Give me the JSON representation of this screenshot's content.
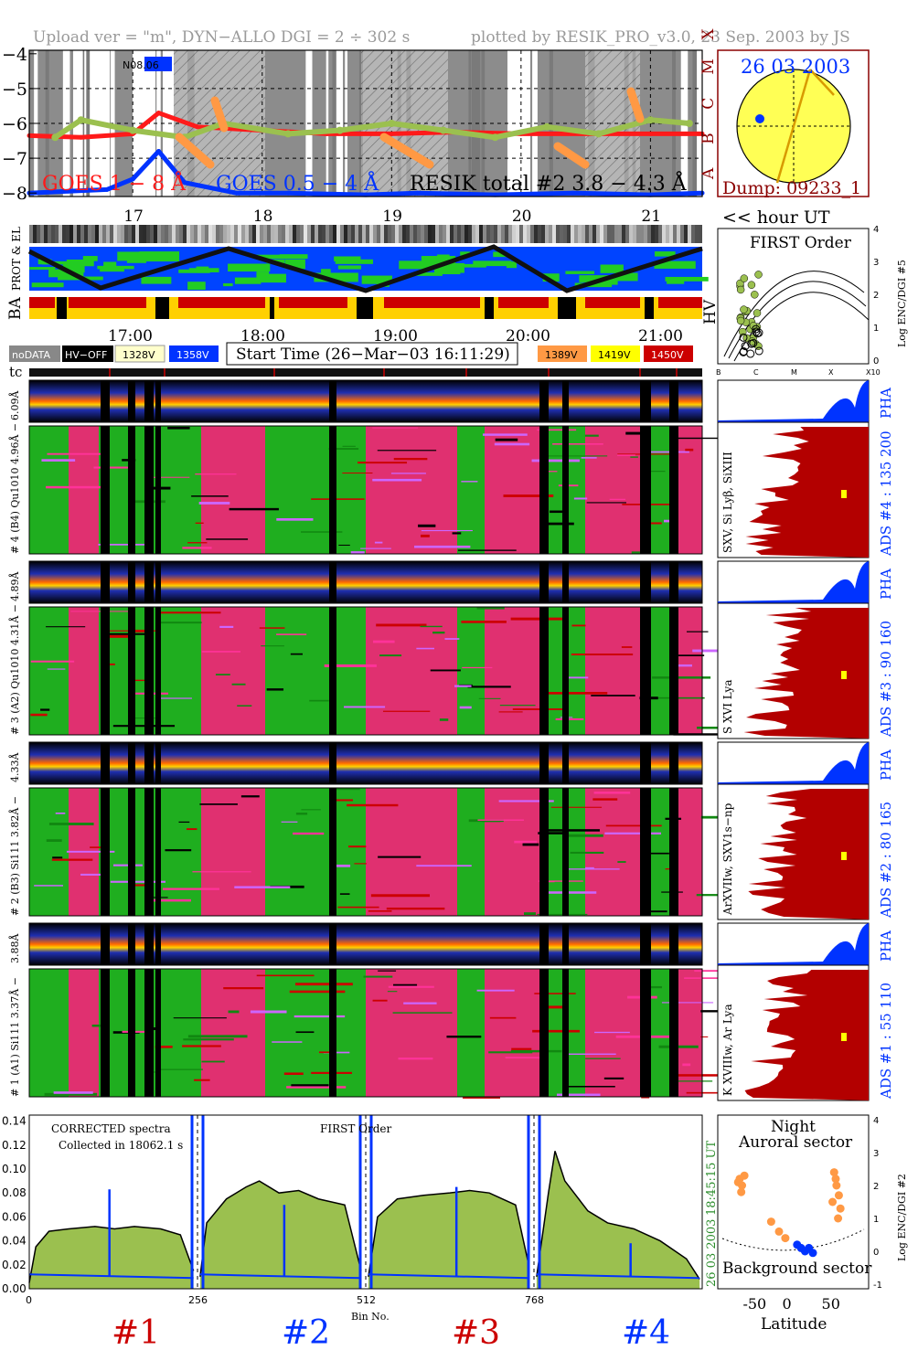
{
  "header": {
    "left": "Upload ver = \"m\", DYN−ALLO DGI =   2 ÷ 302 s",
    "right": "plotted by RESIK_PRO_v3.0, 23 Sep. 2003 by JS"
  },
  "goes_panel": {
    "y_ticks": [
      "−4",
      "−5",
      "−6",
      "−7",
      "−8"
    ],
    "class_letters": [
      "X",
      "M",
      "C",
      "B",
      "A"
    ],
    "label_long": "GOES 1 − 8 Å",
    "label_short": "GOES 0.5 − 4 Å",
    "label_resik": "RESIK total #2  3.8 − 4.3 Å",
    "region_tag": "N08.06",
    "hour_ticks": [
      "17",
      "18",
      "19",
      "20",
      "21"
    ]
  },
  "sun_panel": {
    "date": "26 03 2003",
    "dump": "Dump: 09233_1"
  },
  "axis_labels": {
    "hour_ut": "<< hour UT",
    "prot_el": "PROT & EL",
    "ba": "BA",
    "hv": "HV",
    "tc": "tc",
    "bin_no": "Bin No.",
    "latitude": "Latitude",
    "log_enc_5": "Log ENC/DGI #5",
    "log_enc_2": "Log ENC/DGI #2"
  },
  "time_ticks": [
    "17:00",
    "18:00",
    "19:00",
    "20:00",
    "21:00"
  ],
  "legend": {
    "nodata": "noDATA",
    "hvoff": "HV−OFF",
    "v1": "1328V",
    "v2": "1358V",
    "start_time": "Start Time (26−Mar−03 16:11:29)",
    "v3": "1389V",
    "v4": "1419V",
    "v5": "1450V"
  },
  "first_order": {
    "title": "FIRST Order",
    "x_ticks": [
      "B",
      "C",
      "M",
      "X",
      "X10"
    ],
    "y_ticks": [
      "0",
      "1",
      "2",
      "3",
      "4"
    ]
  },
  "channels": [
    {
      "pha_left": "6.09Å",
      "band_label": "# 4 (B4)  Qu1010  4.96Å −",
      "lines": "SXV, Si Lyβ, SiXIII",
      "pha": "PHA",
      "ads": "ADS #4 :   135 200"
    },
    {
      "pha_left": "4.89Å",
      "band_label": "# 3 (A2)  Qu1010  4.31Å −",
      "lines": "S XVI Lya",
      "pha": "PHA",
      "ads": "ADS #3 :   90 160"
    },
    {
      "pha_left": "4.33Å",
      "band_label": "# 2 (B3)  Si111  3.82Å −",
      "lines": "ArXVIIw, SXV1s−np",
      "pha": "PHA",
      "ads": "ADS #2 :   80 165"
    },
    {
      "pha_left": "3.88Å",
      "band_label": "# 1 (A1)  Si111  3.37Å −",
      "lines": "K XVIIIw, Ar Lya",
      "pha": "PHA",
      "ads": "ADS #1 :   55 110"
    }
  ],
  "spectra": {
    "label1": "CORRECTED spectra",
    "label2": "Collected in 18062.1 s",
    "label3": "FIRST Order",
    "time_right": "18:45:15 UT",
    "date_right": "26 03 2003",
    "colors": {
      "fill": "#9bc04f",
      "line": "#000000",
      "background": "#0033ff"
    }
  },
  "chart_data": [
    {
      "type": "line",
      "title": "",
      "xlabel": "Bin No.",
      "ylabel": "",
      "x_ticks": [
        0,
        256,
        512,
        768
      ],
      "y_ticks": [
        0.0,
        0.02,
        0.04,
        0.06,
        0.08,
        0.1,
        0.12,
        0.14
      ],
      "y_tick_labels": [
        "0.00",
        "0.02",
        "0.04",
        "0.06",
        "0.08",
        "0.10",
        "0.12",
        "0.14"
      ],
      "xlim": [
        0,
        1024
      ],
      "ylim": [
        0,
        0.145
      ],
      "segments": [
        {
          "name": "#1",
          "color": "#cc0000",
          "x": [
            0,
            10,
            30,
            60,
            100,
            130,
            160,
            200,
            230,
            250
          ],
          "y": [
            0.005,
            0.035,
            0.048,
            0.05,
            0.052,
            0.05,
            0.052,
            0.05,
            0.045,
            0.015
          ]
        },
        {
          "name": "#2",
          "color": "#0033ff",
          "x": [
            260,
            270,
            300,
            330,
            350,
            380,
            410,
            440,
            480,
            505
          ],
          "y": [
            0.01,
            0.055,
            0.075,
            0.085,
            0.09,
            0.08,
            0.082,
            0.075,
            0.07,
            0.015
          ]
        },
        {
          "name": "#3",
          "color": "#cc0000",
          "x": [
            516,
            530,
            560,
            600,
            640,
            670,
            700,
            740,
            760
          ],
          "y": [
            0.01,
            0.06,
            0.075,
            0.078,
            0.08,
            0.082,
            0.08,
            0.07,
            0.02
          ]
        },
        {
          "name": "#4",
          "color": "#0033ff",
          "x": [
            772,
            790,
            800,
            815,
            850,
            880,
            920,
            960,
            1000,
            1020
          ],
          "y": [
            0.01,
            0.08,
            0.115,
            0.09,
            0.065,
            0.055,
            0.05,
            0.04,
            0.025,
            0.008
          ]
        }
      ],
      "background_level": 0.012,
      "spikes": [
        {
          "x": 122,
          "y": 0.083
        },
        {
          "x": 388,
          "y": 0.07
        },
        {
          "x": 650,
          "y": 0.085
        },
        {
          "x": 915,
          "y": 0.038
        }
      ]
    },
    {
      "type": "line",
      "title": "",
      "y_ticks": [
        -8,
        -7,
        -6,
        -5,
        -4
      ],
      "ylim": [
        -8.1,
        -3.9
      ],
      "xlim": [
        16.2,
        21.4
      ],
      "series": [
        {
          "name": "GOES 1 − 8 Å",
          "color": "#ff1a1a",
          "x": [
            16.2,
            16.6,
            17.0,
            17.2,
            17.5,
            18.0,
            18.5,
            19.0,
            19.5,
            20.0,
            20.5,
            21.0,
            21.4
          ],
          "y": [
            -6.35,
            -6.4,
            -6.3,
            -5.7,
            -6.1,
            -6.2,
            -6.3,
            -6.3,
            -6.25,
            -6.3,
            -6.3,
            -6.3,
            -6.3
          ]
        },
        {
          "name": "GOES 0.5 − 4 Å",
          "color": "#0033ff",
          "x": [
            16.2,
            16.5,
            16.8,
            17.0,
            17.2,
            17.4,
            17.8,
            18.2,
            18.8,
            19.2,
            19.8,
            20.4,
            21.0,
            21.4
          ],
          "y": [
            -8.0,
            -7.95,
            -7.9,
            -7.6,
            -6.8,
            -7.7,
            -8.0,
            -8.0,
            -8.05,
            -8.0,
            -8.05,
            -8.0,
            -8.05,
            -8.0
          ]
        },
        {
          "name": "RESIK total #2  3.8 − 4.3 Å",
          "color": "#9bc04f",
          "x": [
            16.4,
            16.6,
            17.0,
            17.4,
            17.7,
            18.2,
            18.6,
            19.0,
            19.4,
            19.8,
            20.2,
            20.6,
            21.0,
            21.3
          ],
          "y": [
            -6.4,
            -5.9,
            -6.2,
            -6.4,
            -6.0,
            -6.3,
            -6.2,
            -6.0,
            -6.2,
            -6.4,
            -6.1,
            -6.3,
            -5.9,
            -6.0
          ]
        }
      ]
    },
    {
      "type": "scatter",
      "title": "",
      "xlabel": "Latitude",
      "ylabel": "Log ENC/DGI #2",
      "x_ticks": [
        -50,
        0,
        50
      ],
      "y_ticks": [
        -1,
        0,
        1,
        2,
        3,
        4
      ],
      "xlim": [
        -90,
        90
      ],
      "ylim": [
        -1,
        4
      ],
      "series": [
        {
          "name": "Auroral sector",
          "color": "#ff9944",
          "x": [
            -68,
            -65,
            -62,
            -66,
            -70,
            -28,
            -18,
            -10,
            52,
            55,
            58,
            50,
            60,
            57,
            54
          ],
          "y": [
            2.2,
            2.0,
            2.3,
            1.8,
            2.1,
            0.9,
            0.6,
            0.4,
            2.4,
            2.0,
            1.7,
            1.5,
            1.3,
            1.0,
            2.2
          ]
        },
        {
          "name": "Background sector",
          "color": "#0033ff",
          "x": [
            5,
            10,
            15,
            20,
            25
          ],
          "y": [
            0.2,
            0.1,
            0.0,
            0.1,
            -0.05
          ]
        }
      ],
      "annotations": [
        "Night",
        "Auroral sector",
        "Background sector"
      ]
    }
  ]
}
